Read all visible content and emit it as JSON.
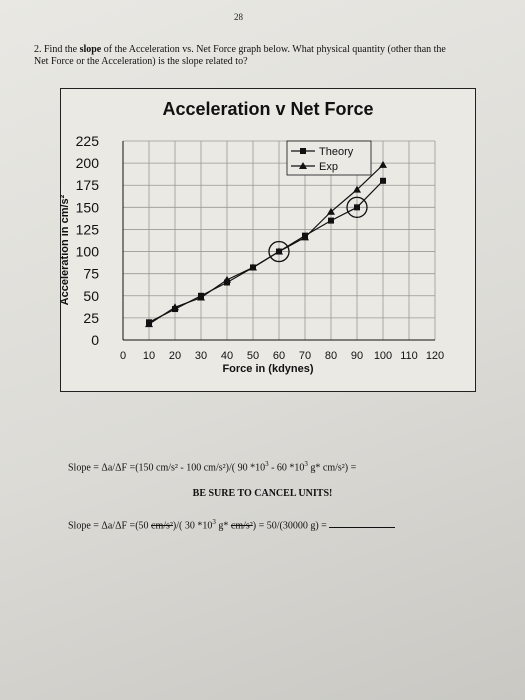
{
  "page": {
    "number": "28"
  },
  "question": {
    "prefix": "2. Find the ",
    "bold": "slope",
    "text": " of the Acceleration vs. Net Force graph below.  What physical quantity (other than the Net Force or the Acceleration) is the slope related to?"
  },
  "chart_data": {
    "type": "line",
    "title": "Acceleration v Net Force",
    "xlabel": "Force in (kdynes)",
    "ylabel": "Acceleration in cm/s²",
    "xlim": [
      0,
      120
    ],
    "ylim": [
      0,
      225
    ],
    "x_ticks": [
      "0",
      "10",
      "20",
      "30",
      "40",
      "50",
      "60",
      "70",
      "80",
      "90",
      "100",
      "110",
      "120"
    ],
    "y_ticks": [
      "225",
      "200",
      "175",
      "150",
      "125",
      "100",
      "75",
      "50",
      "25",
      "0"
    ],
    "grid": true,
    "legend": "top-right",
    "series": [
      {
        "name": "Theory",
        "marker": "square",
        "x": [
          10,
          20,
          30,
          40,
          50,
          60,
          70,
          80,
          90,
          100
        ],
        "y": [
          20,
          35,
          50,
          65,
          82,
          100,
          118,
          135,
          150,
          180
        ]
      },
      {
        "name": "Exp",
        "marker": "triangle",
        "x": [
          10,
          20,
          30,
          40,
          50,
          60,
          70,
          80,
          90,
          100
        ],
        "y": [
          18,
          37,
          48,
          68,
          82,
          100,
          116,
          145,
          170,
          198
        ]
      }
    ],
    "circled_points": [
      {
        "x": 60,
        "y": 100
      },
      {
        "x": 90,
        "y": 150
      }
    ]
  },
  "equations": {
    "line1": {
      "a": "Slope = Δa/ΔF =(150 cm/s² - 100 cm/s²)/( 90 *10",
      "b": " - 60 *10",
      "c": " g* cm/s²) =",
      "exp": "3"
    },
    "note": "BE SURE TO CANCEL UNITS!",
    "line2": {
      "a": "Slope = Δa/ΔF =(50 ",
      "unit": "cm/s²",
      "b": ")/( 30 *10",
      "exp": "3",
      "c": " g* ",
      "d": ") = 50/(30000 g) ="
    }
  }
}
